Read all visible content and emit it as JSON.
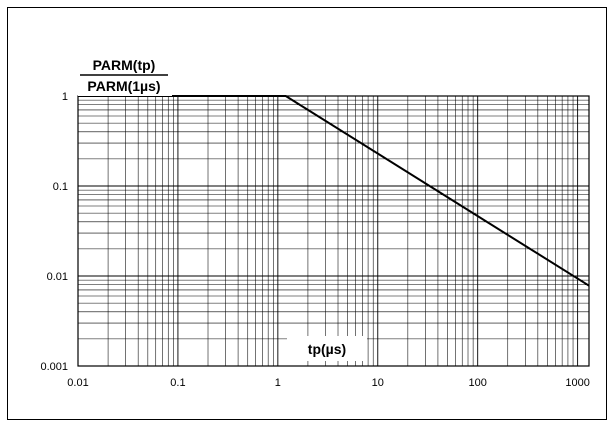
{
  "chart_data": {
    "type": "line",
    "xscale": "log",
    "yscale": "log",
    "xlim": [
      0.01,
      1300
    ],
    "ylim": [
      0.001,
      1
    ],
    "grid": true,
    "ylabel_numerator": "PARM(tp)",
    "ylabel_denominator": "PARM(1µs)",
    "xlabel": "tp(µs)",
    "x_ticks": [
      {
        "value": 0.01,
        "label": "0.01"
      },
      {
        "value": 0.1,
        "label": "0.1"
      },
      {
        "value": 1,
        "label": "1"
      },
      {
        "value": 10,
        "label": "10"
      },
      {
        "value": 100,
        "label": "100"
      },
      {
        "value": 1000,
        "label": "1000"
      }
    ],
    "y_ticks": [
      {
        "value": 1,
        "label": "1"
      },
      {
        "value": 0.1,
        "label": "0.1"
      },
      {
        "value": 0.01,
        "label": "0.01"
      },
      {
        "value": 0.001,
        "label": "0.001"
      }
    ],
    "series": [
      {
        "x": [
          0.01,
          1.2,
          1300
        ],
        "y": [
          1,
          1,
          0.0078
        ],
        "color": "#000000"
      }
    ]
  }
}
